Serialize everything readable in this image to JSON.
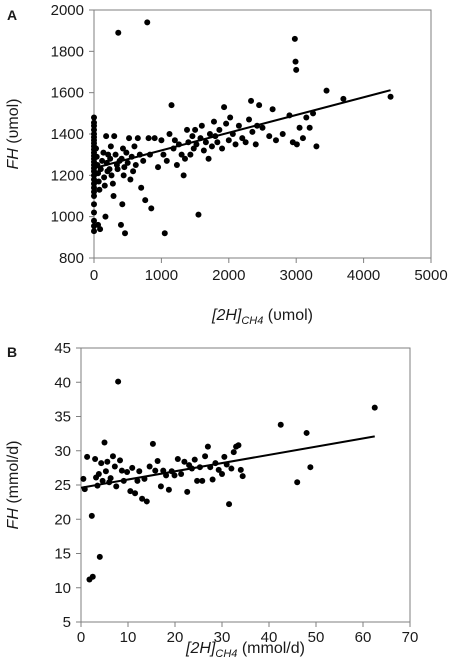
{
  "chart_data": [
    {
      "panel": "A",
      "type": "scatter",
      "xlabel_main": "[2H]",
      "xlabel_sub": "CH4",
      "xlabel_unit": " (υmol)",
      "ylabel_main": "FH",
      "ylabel_unit": " (υmol)",
      "xlim": [
        0,
        5000
      ],
      "ylim": [
        800,
        2000
      ],
      "xticks": [
        0,
        1000,
        2000,
        3000,
        4000,
        5000
      ],
      "yticks": [
        800,
        1000,
        1200,
        1400,
        1600,
        1800,
        2000
      ],
      "grid": false,
      "trendline": {
        "x": [
          0,
          4400
        ],
        "y": [
          1235,
          1612
        ]
      },
      "points": [
        [
          0,
          1480
        ],
        [
          0,
          1455
        ],
        [
          0,
          1440
        ],
        [
          0,
          1420
        ],
        [
          0,
          1400
        ],
        [
          0,
          1385
        ],
        [
          0,
          1370
        ],
        [
          0,
          1355
        ],
        [
          0,
          1340
        ],
        [
          0,
          1325
        ],
        [
          0,
          1310
        ],
        [
          0,
          1295
        ],
        [
          0,
          1280
        ],
        [
          0,
          1265
        ],
        [
          0,
          1250
        ],
        [
          0,
          1235
        ],
        [
          0,
          1220
        ],
        [
          0,
          1200
        ],
        [
          0,
          1180
        ],
        [
          0,
          1160
        ],
        [
          0,
          1140
        ],
        [
          0,
          1120
        ],
        [
          0,
          1100
        ],
        [
          0,
          1060
        ],
        [
          0,
          1020
        ],
        [
          0,
          980
        ],
        [
          0,
          955
        ],
        [
          0,
          930
        ],
        [
          30,
          1330
        ],
        [
          40,
          1290
        ],
        [
          50,
          1250
        ],
        [
          60,
          1210
        ],
        [
          70,
          1170
        ],
        [
          80,
          1130
        ],
        [
          60,
          960
        ],
        [
          90,
          940
        ],
        [
          100,
          1230
        ],
        [
          120,
          1270
        ],
        [
          140,
          1310
        ],
        [
          150,
          1190
        ],
        [
          160,
          1150
        ],
        [
          170,
          1000
        ],
        [
          180,
          1390
        ],
        [
          190,
          1260
        ],
        [
          200,
          1220
        ],
        [
          210,
          1300
        ],
        [
          230,
          1230
        ],
        [
          240,
          1280
        ],
        [
          250,
          1340
        ],
        [
          260,
          1200
        ],
        [
          280,
          1160
        ],
        [
          290,
          1100
        ],
        [
          300,
          1390
        ],
        [
          320,
          1300
        ],
        [
          340,
          1250
        ],
        [
          350,
          1230
        ],
        [
          360,
          1890
        ],
        [
          380,
          1270
        ],
        [
          400,
          960
        ],
        [
          410,
          1280
        ],
        [
          420,
          1060
        ],
        [
          430,
          1330
        ],
        [
          440,
          1200
        ],
        [
          450,
          1240
        ],
        [
          460,
          920
        ],
        [
          480,
          1310
        ],
        [
          500,
          1260
        ],
        [
          520,
          1380
        ],
        [
          540,
          1180
        ],
        [
          560,
          1290
        ],
        [
          580,
          1220
        ],
        [
          600,
          1340
        ],
        [
          620,
          1250
        ],
        [
          650,
          1380
        ],
        [
          680,
          1300
        ],
        [
          700,
          1140
        ],
        [
          730,
          1270
        ],
        [
          760,
          1080
        ],
        [
          790,
          1940
        ],
        [
          810,
          1380
        ],
        [
          830,
          1300
        ],
        [
          850,
          1040
        ],
        [
          900,
          1380
        ],
        [
          950,
          1240
        ],
        [
          1000,
          1370
        ],
        [
          1030,
          1300
        ],
        [
          1050,
          920
        ],
        [
          1080,
          1270
        ],
        [
          1120,
          1400
        ],
        [
          1150,
          1540
        ],
        [
          1180,
          1330
        ],
        [
          1200,
          1370
        ],
        [
          1230,
          1250
        ],
        [
          1260,
          1350
        ],
        [
          1300,
          1300
        ],
        [
          1330,
          1200
        ],
        [
          1350,
          1280
        ],
        [
          1380,
          1420
        ],
        [
          1400,
          1360
        ],
        [
          1430,
          1300
        ],
        [
          1460,
          1390
        ],
        [
          1480,
          1330
        ],
        [
          1500,
          1420
        ],
        [
          1520,
          1350
        ],
        [
          1550,
          1010
        ],
        [
          1580,
          1380
        ],
        [
          1600,
          1440
        ],
        [
          1630,
          1320
        ],
        [
          1660,
          1360
        ],
        [
          1700,
          1280
        ],
        [
          1720,
          1400
        ],
        [
          1750,
          1340
        ],
        [
          1780,
          1460
        ],
        [
          1800,
          1390
        ],
        [
          1830,
          1360
        ],
        [
          1860,
          1420
        ],
        [
          1900,
          1330
        ],
        [
          1930,
          1530
        ],
        [
          1960,
          1450
        ],
        [
          2000,
          1370
        ],
        [
          2020,
          1480
        ],
        [
          2060,
          1400
        ],
        [
          2100,
          1350
        ],
        [
          2150,
          1440
        ],
        [
          2200,
          1380
        ],
        [
          2250,
          1360
        ],
        [
          2300,
          1470
        ],
        [
          2330,
          1560
        ],
        [
          2350,
          1410
        ],
        [
          2400,
          1350
        ],
        [
          2420,
          1440
        ],
        [
          2450,
          1540
        ],
        [
          2500,
          1430
        ],
        [
          2600,
          1390
        ],
        [
          2650,
          1520
        ],
        [
          2700,
          1370
        ],
        [
          2800,
          1400
        ],
        [
          2900,
          1490
        ],
        [
          2950,
          1360
        ],
        [
          2980,
          1860
        ],
        [
          2990,
          1750
        ],
        [
          3000,
          1710
        ],
        [
          3010,
          1350
        ],
        [
          3050,
          1430
        ],
        [
          3100,
          1380
        ],
        [
          3150,
          1480
        ],
        [
          3200,
          1430
        ],
        [
          3250,
          1500
        ],
        [
          3300,
          1340
        ],
        [
          3450,
          1610
        ],
        [
          3700,
          1570
        ],
        [
          4400,
          1580
        ]
      ]
    },
    {
      "panel": "B",
      "type": "scatter",
      "xlabel_main": "[2H]",
      "xlabel_sub": "CH4",
      "xlabel_unit": " (mmol/d)",
      "ylabel_main": "FH",
      "ylabel_unit": " (mmol/d)",
      "xlim": [
        0,
        70
      ],
      "ylim": [
        5,
        45
      ],
      "xticks": [
        0,
        10,
        20,
        30,
        40,
        50,
        60,
        70
      ],
      "yticks": [
        5,
        10,
        15,
        20,
        25,
        30,
        35,
        40,
        45
      ],
      "grid": false,
      "trendline": {
        "x": [
          0,
          62.5
        ],
        "y": [
          24.6,
          32.1
        ]
      },
      "points": [
        [
          0.5,
          25.9
        ],
        [
          0.8,
          24.4
        ],
        [
          1.3,
          29.1
        ],
        [
          1.8,
          11.2
        ],
        [
          2.3,
          20.5
        ],
        [
          2.5,
          11.6
        ],
        [
          3.0,
          28.8
        ],
        [
          3.2,
          26.1
        ],
        [
          3.5,
          24.9
        ],
        [
          3.8,
          26.6
        ],
        [
          4.0,
          14.5
        ],
        [
          4.3,
          28.2
        ],
        [
          4.6,
          25.6
        ],
        [
          5.0,
          31.2
        ],
        [
          5.3,
          27.0
        ],
        [
          5.6,
          28.4
        ],
        [
          6.0,
          25.4
        ],
        [
          6.3,
          26.0
        ],
        [
          6.8,
          29.2
        ],
        [
          7.2,
          27.7
        ],
        [
          7.5,
          24.8
        ],
        [
          7.9,
          40.1
        ],
        [
          8.3,
          28.6
        ],
        [
          8.7,
          27.1
        ],
        [
          9.1,
          25.6
        ],
        [
          9.8,
          26.9
        ],
        [
          10.5,
          24.1
        ],
        [
          10.9,
          27.5
        ],
        [
          11.5,
          23.8
        ],
        [
          12.0,
          25.6
        ],
        [
          12.4,
          27.0
        ],
        [
          13.0,
          23.0
        ],
        [
          13.5,
          25.9
        ],
        [
          14.0,
          22.6
        ],
        [
          14.6,
          27.7
        ],
        [
          15.3,
          31.0
        ],
        [
          15.8,
          27.1
        ],
        [
          16.3,
          28.5
        ],
        [
          17.0,
          24.8
        ],
        [
          17.5,
          27.1
        ],
        [
          18.1,
          26.4
        ],
        [
          18.7,
          24.3
        ],
        [
          19.3,
          27.0
        ],
        [
          19.9,
          26.4
        ],
        [
          20.6,
          28.8
        ],
        [
          21.3,
          26.6
        ],
        [
          22.0,
          28.4
        ],
        [
          22.6,
          24.0
        ],
        [
          23.0,
          27.9
        ],
        [
          23.6,
          27.4
        ],
        [
          24.2,
          28.7
        ],
        [
          24.7,
          25.6
        ],
        [
          25.3,
          27.6
        ],
        [
          25.8,
          25.6
        ],
        [
          26.4,
          29.2
        ],
        [
          27.0,
          30.6
        ],
        [
          27.5,
          27.6
        ],
        [
          28.0,
          25.8
        ],
        [
          28.6,
          28.2
        ],
        [
          29.3,
          27.2
        ],
        [
          30.0,
          26.6
        ],
        [
          30.5,
          29.1
        ],
        [
          31.0,
          28.0
        ],
        [
          31.5,
          22.2
        ],
        [
          32.0,
          27.4
        ],
        [
          32.5,
          29.8
        ],
        [
          33.0,
          30.6
        ],
        [
          33.5,
          30.8
        ],
        [
          34.0,
          27.2
        ],
        [
          34.4,
          26.3
        ],
        [
          42.5,
          33.8
        ],
        [
          46.0,
          25.4
        ],
        [
          48.0,
          32.6
        ],
        [
          48.8,
          27.6
        ],
        [
          62.5,
          36.3
        ]
      ]
    }
  ]
}
